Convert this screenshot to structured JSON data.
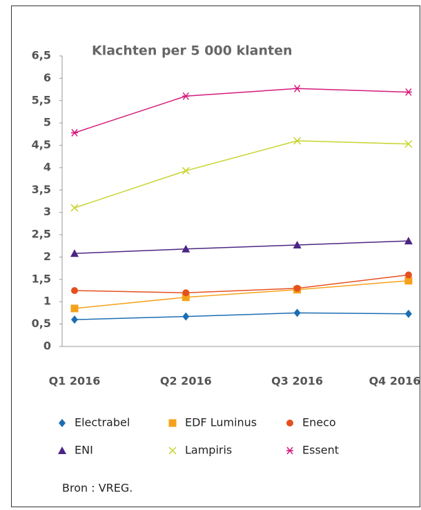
{
  "chart_data": {
    "type": "line",
    "title": "Klachten per 5 000 klanten",
    "categories": [
      "Q1 2016",
      "Q2 2016",
      "Q3 2016",
      "Q4 2016"
    ],
    "series": [
      {
        "name": "Electrabel",
        "color": "#1b6db3",
        "marker": "diamond",
        "values": [
          0.6,
          0.67,
          0.75,
          0.73
        ]
      },
      {
        "name": "EDF Luminus",
        "color": "#f5a21b",
        "marker": "square",
        "values": [
          0.85,
          1.1,
          1.27,
          1.47
        ]
      },
      {
        "name": "Eneco",
        "color": "#e5501f",
        "marker": "circle",
        "values": [
          1.25,
          1.2,
          1.3,
          1.6
        ]
      },
      {
        "name": "ENI",
        "color": "#4b2584",
        "marker": "triangle",
        "values": [
          2.08,
          2.18,
          2.27,
          2.36
        ]
      },
      {
        "name": "Lampiris",
        "color": "#c7d32b",
        "marker": "x",
        "values": [
          3.1,
          3.93,
          4.6,
          4.53
        ]
      },
      {
        "name": "Essent",
        "color": "#d4197b",
        "marker": "asterisk",
        "values": [
          4.78,
          5.6,
          5.77,
          5.69
        ]
      }
    ],
    "ylim": [
      0,
      6.5
    ],
    "yticks": [
      0,
      {
        "value": 0.5,
        "label": "0,5"
      },
      1,
      {
        "value": 1.5,
        "label": "1,5"
      },
      2,
      {
        "value": 2.5,
        "label": "2,5"
      },
      3,
      {
        "value": 3.5,
        "label": "3,5"
      },
      4,
      {
        "value": 4.5,
        "label": "4,5"
      },
      5,
      {
        "value": 5.5,
        "label": "5,5"
      },
      6,
      {
        "value": 6.5,
        "label": "6,5"
      }
    ],
    "source": "Bron : VREG."
  }
}
